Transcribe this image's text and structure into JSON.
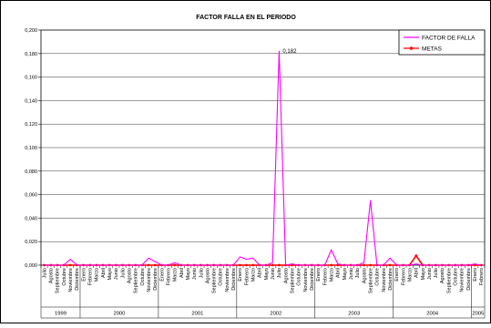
{
  "chart_data": {
    "type": "line",
    "title": "FACTOR FALLA EN EL PERIODO",
    "xlabel": "",
    "ylabel": "",
    "ylim": [
      0,
      0.2
    ],
    "yticks": [
      "0,000",
      "0,020",
      "0,040",
      "0,060",
      "0,080",
      "0,100",
      "0,120",
      "0,140",
      "0,160",
      "0,180",
      "0,200"
    ],
    "grid": true,
    "legend_position": "top-right",
    "categories": [
      "Julio",
      "Agosto",
      "Septiembre",
      "Octubre",
      "Noviembre",
      "Diciembre",
      "Enero",
      "Febrero",
      "Marzo",
      "Abril",
      "Mayo",
      "Junio",
      "Julio",
      "Agosto",
      "Septiembre",
      "Octubre",
      "Noviembre",
      "Diciembre",
      "Enero",
      "Febrero",
      "Marzo",
      "Abril",
      "Mayo",
      "Junio",
      "Julio",
      "Agosto",
      "Septiembre",
      "Octubre",
      "Noviembre",
      "Diciembre",
      "Enero",
      "Febrero",
      "Marzo",
      "Abril",
      "Mayo",
      "Junio",
      "Julio",
      "Agosto",
      "Septiembre",
      "Octubre",
      "Noviembre",
      "Diciembre",
      "Enero",
      "Febrero",
      "Marzo",
      "Abril",
      "Mayo",
      "Junio",
      "Julio",
      "Agosto",
      "Septiembre",
      "Octubre",
      "Noviembre",
      "Diciembre",
      "Enero",
      "Febrero",
      "Marzo",
      "Abril",
      "Mayo",
      "Junio",
      "Julio",
      "Agosto",
      "Septiembre",
      "Octubre",
      "Noviembre",
      "Diciembre",
      "Enero",
      "Febrero"
    ],
    "years": [
      {
        "label": "1999",
        "start": 0,
        "end": 5
      },
      {
        "label": "2000",
        "start": 6,
        "end": 17
      },
      {
        "label": "2001",
        "start": 18,
        "end": 29
      },
      {
        "label": "2002",
        "start": 30,
        "end": 41
      },
      {
        "label": "2003",
        "start": 42,
        "end": 53
      },
      {
        "label": "2004",
        "start": 54,
        "end": 65
      },
      {
        "label": "2005",
        "start": 66,
        "end": 67
      }
    ],
    "series": [
      {
        "name": "FACTOR DE FALLA",
        "color": "#ff00ff",
        "marker": "none",
        "values": [
          0,
          0,
          0,
          0,
          0.005,
          0,
          0,
          0,
          0,
          0,
          0,
          0,
          0,
          0,
          0,
          0,
          0.006,
          0.003,
          0,
          0,
          0.002,
          0,
          0,
          0,
          0,
          0,
          0,
          0,
          0,
          0,
          0.007,
          0.005,
          0.006,
          0,
          0,
          0.002,
          0.182,
          0,
          0.001,
          0,
          0,
          0,
          0,
          0,
          0.013,
          0.001,
          0,
          0,
          0,
          0.002,
          0.055,
          0,
          0,
          0.006,
          0,
          0,
          0,
          0.001,
          0,
          0,
          0,
          0,
          0,
          0,
          0,
          0,
          0.001,
          0
        ]
      },
      {
        "name": "METAS",
        "color": "#ff0000",
        "marker": "circle",
        "values": [
          0,
          0,
          0,
          0,
          0,
          0,
          0,
          0,
          0,
          0,
          0,
          0,
          0,
          0,
          0,
          0,
          0,
          0,
          0,
          0,
          0,
          0,
          0,
          0,
          0,
          0,
          0,
          0,
          0,
          0,
          0,
          0,
          0,
          0,
          0,
          0,
          0,
          0,
          0,
          0,
          0,
          0,
          0,
          0,
          0,
          0,
          0,
          0,
          0,
          0,
          0,
          0,
          0,
          0,
          0,
          0,
          0,
          0.008,
          0,
          0,
          0,
          0,
          0,
          0,
          0,
          0,
          0,
          0
        ]
      }
    ],
    "annotations": [
      {
        "series": "FACTOR DE FALLA",
        "index": 36,
        "text": "0,182"
      }
    ]
  }
}
